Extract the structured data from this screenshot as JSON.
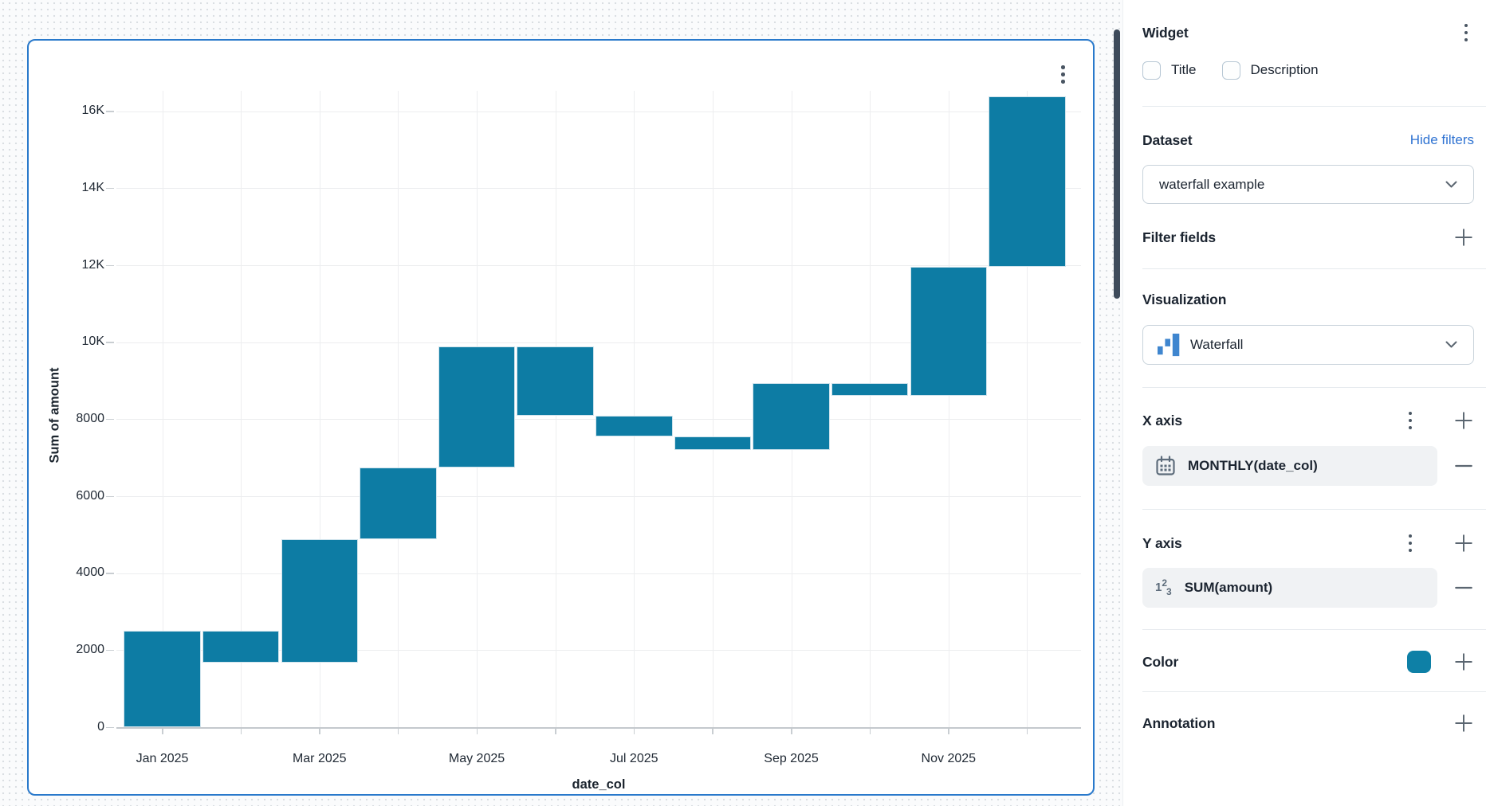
{
  "widget_card": {
    "menu_icon": "kebab-menu"
  },
  "panel": {
    "widget": {
      "title": "Widget",
      "menu_icon": "kebab-menu"
    },
    "checkboxes": [
      {
        "label": "Title",
        "checked": false
      },
      {
        "label": "Description",
        "checked": false
      }
    ],
    "dataset": {
      "heading": "Dataset",
      "link": "Hide filters",
      "selected": "waterfall example"
    },
    "filter_fields": {
      "heading": "Filter fields"
    },
    "visualization": {
      "heading": "Visualization",
      "selected": "Waterfall",
      "icon": "waterfall-chart-icon"
    },
    "x_axis": {
      "heading": "X axis",
      "field": "MONTHLY(date_col)",
      "field_icon": "calendar-icon"
    },
    "y_axis": {
      "heading": "Y axis",
      "field": "SUM(amount)",
      "field_icon": "number-123-icon"
    },
    "color": {
      "heading": "Color",
      "value": "#0e80a6"
    },
    "annotation": {
      "heading": "Annotation"
    }
  },
  "chart_data": {
    "type": "waterfall",
    "title": "",
    "xlabel": "date_col",
    "ylabel": "Sum of amount",
    "bar_color": "#0d7ca4",
    "grid": true,
    "legend": "none",
    "ylim": [
      0,
      16600
    ],
    "y_ticks": [
      {
        "value": 0,
        "label": "0"
      },
      {
        "value": 2000,
        "label": "2000"
      },
      {
        "value": 4000,
        "label": "4000"
      },
      {
        "value": 6000,
        "label": "6000"
      },
      {
        "value": 8000,
        "label": "8000"
      },
      {
        "value": 10000,
        "label": "10K"
      },
      {
        "value": 12000,
        "label": "12K"
      },
      {
        "value": 14000,
        "label": "14K"
      },
      {
        "value": 16000,
        "label": "16K"
      }
    ],
    "x_tick_labels": [
      "Jan 2025",
      "Mar 2025",
      "May 2025",
      "Jul 2025",
      "Sep 2025",
      "Nov 2025"
    ],
    "bars": [
      {
        "month": "Jan 2025",
        "start": 0,
        "end": 2500,
        "delta": 2500
      },
      {
        "month": "Feb 2025",
        "start": 2500,
        "end": 1670,
        "delta": -830
      },
      {
        "month": "Mar 2025",
        "start": 1670,
        "end": 4890,
        "delta": 3220
      },
      {
        "month": "Apr 2025",
        "start": 4890,
        "end": 6750,
        "delta": 1860
      },
      {
        "month": "May 2025",
        "start": 6750,
        "end": 9900,
        "delta": 3150
      },
      {
        "month": "Jun 2025",
        "start": 9900,
        "end": 8100,
        "delta": -1800
      },
      {
        "month": "Jul 2025",
        "start": 8100,
        "end": 7550,
        "delta": -550
      },
      {
        "month": "Aug 2025",
        "start": 7550,
        "end": 7200,
        "delta": -350
      },
      {
        "month": "Sep 2025",
        "start": 7200,
        "end": 8940,
        "delta": 1740
      },
      {
        "month": "Oct 2025",
        "start": 8940,
        "end": 8610,
        "delta": -330
      },
      {
        "month": "Nov 2025",
        "start": 8610,
        "end": 11960,
        "delta": 3350
      },
      {
        "month": "Dec 2025",
        "start": 11960,
        "end": 16380,
        "delta": 4420
      }
    ]
  }
}
